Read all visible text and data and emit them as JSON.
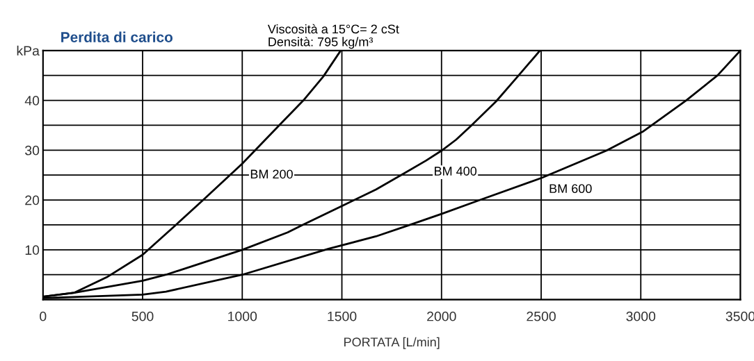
{
  "chart_data": {
    "type": "line",
    "title": "Perdita di carico",
    "subtitle": "Viscosità a 15°C= 2 cSt\nDensità: 795 kg/m³",
    "xlabel": "PORTATA [L/min]",
    "series": [
      {
        "name": "BM 200",
        "color": "#000000",
        "x": [
          0,
          158,
          320,
          500,
          667,
          804,
          1000,
          1193,
          1307,
          1407,
          1494
        ],
        "values": [
          0.6,
          1.4,
          4.5,
          9,
          15,
          20,
          27.3,
          35.3,
          40,
          44.8,
          50
        ]
      },
      {
        "name": "BM 400",
        "color": "#000000",
        "x": [
          0,
          158,
          500,
          617,
          1000,
          1228,
          1303,
          1500,
          1671,
          1797,
          1922,
          2000,
          2073,
          2148,
          2274,
          2387,
          2494
        ],
        "values": [
          0.6,
          1.4,
          3.8,
          5,
          10,
          13.5,
          15,
          18.8,
          22.1,
          25,
          27.9,
          29.9,
          32.1,
          34.9,
          39.8,
          45,
          50
        ]
      },
      {
        "name": "BM 600",
        "color": "#000000",
        "x": [
          0,
          500,
          617,
          1000,
          1433,
          1671,
          1834,
          2000,
          2186,
          2500,
          2827,
          3009,
          3228,
          3385,
          3500
        ],
        "values": [
          0.3,
          1,
          1.6,
          5,
          10.2,
          12.7,
          14.9,
          17.2,
          19.9,
          24.4,
          29.9,
          33.7,
          40,
          45,
          50
        ]
      }
    ],
    "xlim": [
      0,
      3500
    ],
    "xticks": [
      0,
      500,
      1000,
      1500,
      2000,
      2500,
      3000,
      3500
    ],
    "ylim": [
      0,
      50
    ],
    "yticks": [
      {
        "value": 0,
        "label": null
      },
      {
        "value": 5,
        "label": null
      },
      10,
      {
        "value": 15,
        "label": null
      },
      20,
      {
        "value": 25,
        "label": null
      },
      30,
      {
        "value": 35,
        "label": null
      },
      40,
      {
        "value": 45,
        "label": null
      },
      {
        "value": 50,
        "label": "kPa"
      }
    ],
    "grid": true,
    "legend": false,
    "marker": "none",
    "line_style": "solid"
  }
}
